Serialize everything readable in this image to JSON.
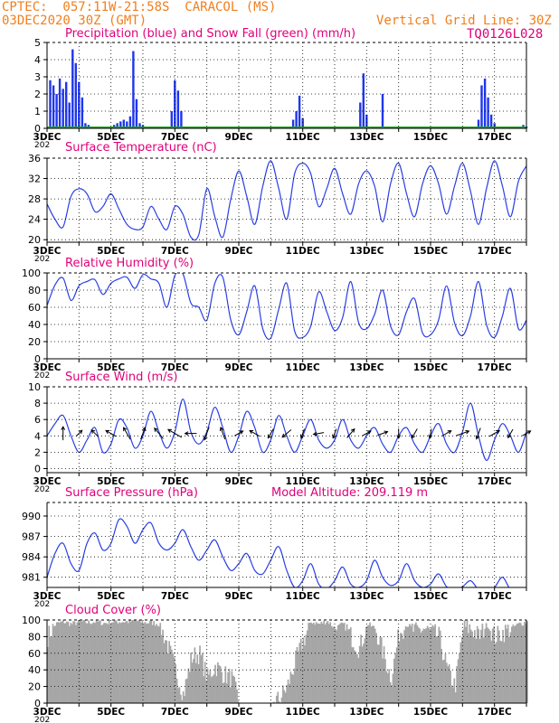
{
  "header": {
    "line1": "CPTEC:  057:11W-21:58S  CARACOL (MS)",
    "line2": "03DEC2020 30Z (GMT)",
    "grid_note": "Vertical Grid Line: 30Z",
    "code": "TQ0126L028",
    "color": "#f07f1e"
  },
  "colors": {
    "title": "#e0007a",
    "line": "#2a3fe6",
    "precip": "#1f36ee",
    "snow": "#22aa22",
    "cloud": "#a6a6a6",
    "arrow": "#000000"
  },
  "x_tick_labels": [
    "3DEC",
    "5DEC",
    "7DEC",
    "9DEC",
    "11DEC",
    "13DEC",
    "15DEC",
    "17DEC"
  ],
  "x_tick_days": [
    3,
    5,
    7,
    9,
    11,
    13,
    15,
    17
  ],
  "x_stub_label": "202",
  "chart_data": [
    {
      "id": "precip",
      "type": "bar",
      "title": "Precipitation (blue) and Snow Fall (green) (mm/h)",
      "ylim": [
        0,
        5
      ],
      "yticks": [
        0,
        1,
        2,
        3,
        4,
        5
      ],
      "series": [
        {
          "name": "Precipitation",
          "x": [
            3.1,
            3.2,
            3.3,
            3.4,
            3.5,
            3.6,
            3.7,
            3.8,
            3.9,
            4.0,
            4.1,
            4.2,
            4.3,
            5.0,
            5.1,
            5.2,
            5.3,
            5.4,
            5.5,
            5.6,
            5.7,
            5.8,
            5.9,
            6.0,
            6.1,
            6.9,
            7.0,
            7.1,
            7.2,
            10.7,
            10.8,
            10.9,
            11.0,
            12.8,
            12.9,
            13.0,
            13.5,
            16.5,
            16.6,
            16.7,
            16.8,
            16.9,
            17.0,
            17.9,
            18.0
          ],
          "values": [
            2.8,
            2.5,
            2.0,
            2.9,
            2.3,
            2.7,
            1.5,
            4.6,
            3.8,
            2.7,
            1.8,
            0.3,
            0.2,
            0.1,
            0.2,
            0.3,
            0.4,
            0.5,
            0.4,
            0.7,
            4.5,
            1.7,
            0.3,
            0.2,
            0.1,
            1.0,
            2.8,
            2.2,
            1.0,
            0.5,
            1.0,
            1.9,
            0.6,
            1.5,
            3.2,
            0.8,
            2.0,
            0.5,
            2.5,
            2.9,
            1.8,
            0.8,
            0.3,
            0.2,
            0.1
          ]
        },
        {
          "name": "Snow Fall",
          "x": [],
          "values": []
        }
      ]
    },
    {
      "id": "temp",
      "type": "line",
      "title": "Surface Temperature (nC)",
      "ylim": [
        19.5,
        36
      ],
      "yticks": [
        20,
        24,
        28,
        32,
        36
      ],
      "x": [
        3.0,
        3.25,
        3.5,
        3.75,
        4.0,
        4.25,
        4.5,
        4.75,
        5.0,
        5.25,
        5.5,
        5.75,
        6.0,
        6.25,
        6.5,
        6.75,
        7.0,
        7.25,
        7.5,
        7.75,
        8.0,
        8.25,
        8.5,
        8.75,
        9.0,
        9.25,
        9.5,
        9.75,
        10.0,
        10.25,
        10.5,
        10.75,
        11.0,
        11.25,
        11.5,
        11.75,
        12.0,
        12.25,
        12.5,
        12.75,
        13.0,
        13.25,
        13.5,
        13.75,
        14.0,
        14.25,
        14.5,
        14.75,
        15.0,
        15.25,
        15.5,
        15.75,
        16.0,
        16.25,
        16.5,
        16.75,
        17.0,
        17.25,
        17.5,
        17.75,
        18.0
      ],
      "values": [
        27.0,
        24.0,
        22.5,
        28.5,
        30.0,
        29.0,
        25.5,
        26.5,
        29.0,
        26.0,
        23.0,
        22.0,
        22.5,
        26.5,
        24.0,
        22.0,
        26.5,
        25.0,
        20.5,
        21.0,
        30.0,
        24.5,
        20.5,
        28.0,
        33.5,
        28.5,
        23.0,
        30.5,
        35.5,
        30.0,
        24.0,
        33.0,
        35.0,
        33.0,
        26.5,
        30.0,
        34.0,
        29.0,
        25.0,
        31.0,
        33.5,
        30.5,
        23.5,
        31.0,
        35.0,
        29.0,
        24.5,
        31.0,
        34.5,
        31.0,
        25.0,
        30.5,
        35.0,
        29.5,
        23.0,
        30.0,
        35.5,
        30.5,
        24.5,
        31.5,
        34.5
      ]
    },
    {
      "id": "rh",
      "type": "line",
      "title": "Relative Humidity (%)",
      "ylim": [
        0,
        100
      ],
      "yticks": [
        0,
        20,
        40,
        60,
        80,
        100
      ],
      "x": [
        3.0,
        3.25,
        3.5,
        3.75,
        4.0,
        4.25,
        4.5,
        4.75,
        5.0,
        5.25,
        5.5,
        5.75,
        6.0,
        6.25,
        6.5,
        6.75,
        7.0,
        7.25,
        7.5,
        7.75,
        8.0,
        8.25,
        8.5,
        8.75,
        9.0,
        9.25,
        9.5,
        9.75,
        10.0,
        10.25,
        10.5,
        10.75,
        11.0,
        11.25,
        11.5,
        11.75,
        12.0,
        12.25,
        12.5,
        12.75,
        13.0,
        13.25,
        13.5,
        13.75,
        14.0,
        14.25,
        14.5,
        14.75,
        15.0,
        15.25,
        15.5,
        15.75,
        16.0,
        16.25,
        16.5,
        16.75,
        17.0,
        17.25,
        17.5,
        17.75,
        18.0
      ],
      "values": [
        62.0,
        86.0,
        94.0,
        68.0,
        85.0,
        90.0,
        92.0,
        75.0,
        88.0,
        93.0,
        95.0,
        82.0,
        98.0,
        93.0,
        88.0,
        60.0,
        97.0,
        99.0,
        65.0,
        60.0,
        45.0,
        88.0,
        95.0,
        45.0,
        28.0,
        55.0,
        85.0,
        35.0,
        24.0,
        58.0,
        88.0,
        32.0,
        25.0,
        38.0,
        78.0,
        55.0,
        33.0,
        48.0,
        90.0,
        42.0,
        35.0,
        52.0,
        80.0,
        38.0,
        28.0,
        55.0,
        70.0,
        30.0,
        28.0,
        45.0,
        85.0,
        42.0,
        27.0,
        50.0,
        90.0,
        40.0,
        25.0,
        50.0,
        82.0,
        35.0,
        45.0
      ]
    },
    {
      "id": "wind",
      "type": "line",
      "title": "Surface Wind (m/s)",
      "ylim": [
        -0.5,
        10
      ],
      "yticks": [
        0,
        2,
        4,
        6,
        8,
        10
      ],
      "x": [
        3.0,
        3.25,
        3.5,
        3.75,
        4.0,
        4.25,
        4.5,
        4.75,
        5.0,
        5.25,
        5.5,
        5.75,
        6.0,
        6.25,
        6.5,
        6.75,
        7.0,
        7.25,
        7.5,
        7.75,
        8.0,
        8.25,
        8.5,
        8.75,
        9.0,
        9.25,
        9.5,
        9.75,
        10.0,
        10.25,
        10.5,
        10.75,
        11.0,
        11.25,
        11.5,
        11.75,
        12.0,
        12.25,
        12.5,
        12.75,
        13.0,
        13.25,
        13.5,
        13.75,
        14.0,
        14.25,
        14.5,
        14.75,
        15.0,
        15.25,
        15.5,
        15.75,
        16.0,
        16.25,
        16.5,
        16.75,
        17.0,
        17.25,
        17.5,
        17.75,
        18.0
      ],
      "values": [
        4.0,
        5.5,
        6.5,
        4.0,
        2.0,
        3.5,
        5.0,
        2.0,
        3.0,
        6.0,
        5.0,
        2.5,
        4.0,
        7.0,
        4.5,
        2.5,
        4.5,
        8.5,
        4.5,
        3.0,
        4.5,
        7.5,
        5.0,
        2.0,
        4.0,
        7.0,
        5.0,
        2.0,
        3.5,
        6.5,
        4.0,
        2.0,
        4.0,
        6.0,
        3.5,
        2.5,
        3.5,
        6.0,
        3.5,
        2.5,
        4.0,
        5.0,
        3.0,
        2.0,
        4.0,
        5.0,
        3.0,
        2.0,
        4.0,
        5.5,
        3.0,
        2.0,
        4.5,
        8.0,
        4.0,
        1.0,
        3.5,
        5.5,
        4.0,
        2.0,
        4.5
      ],
      "arrows": {
        "x": [
          3.5,
          4.0,
          4.5,
          5.0,
          5.5,
          6.0,
          6.5,
          7.0,
          7.5,
          8.0,
          8.5,
          9.0,
          9.5,
          10.0,
          10.5,
          11.0,
          11.5,
          12.0,
          12.5,
          13.0,
          13.5,
          14.0,
          14.5,
          15.0,
          15.5,
          16.0,
          16.5,
          17.0,
          17.5,
          18.0
        ],
        "speed": [
          5.0,
          2.5,
          3.0,
          4.0,
          5.0,
          4.5,
          5.0,
          6.0,
          4.0,
          5.0,
          4.5,
          3.0,
          4.0,
          3.5,
          4.0,
          3.0,
          3.5,
          3.0,
          4.0,
          3.0,
          3.5,
          3.0,
          3.5,
          3.0,
          3.5,
          5.0,
          4.0,
          4.0,
          3.0,
          3.0
        ],
        "dir_deg": [
          0,
          45,
          315,
          300,
          330,
          20,
          320,
          300,
          270,
          200,
          340,
          60,
          300,
          210,
          230,
          200,
          260,
          200,
          40,
          60,
          70,
          180,
          210,
          190,
          60,
          70,
          200,
          60,
          210,
          60
        ]
      }
    },
    {
      "id": "pres",
      "type": "line",
      "title": "Surface Pressure (hPa)",
      "subtitle": "Model Altitude: 209.119  m",
      "ylim": [
        979.5,
        992
      ],
      "yticks": [
        981,
        984,
        987,
        990
      ],
      "x": [
        3.0,
        3.25,
        3.5,
        3.75,
        4.0,
        4.25,
        4.5,
        4.75,
        5.0,
        5.25,
        5.5,
        5.75,
        6.0,
        6.25,
        6.5,
        6.75,
        7.0,
        7.25,
        7.5,
        7.75,
        8.0,
        8.25,
        8.5,
        8.75,
        9.0,
        9.25,
        9.5,
        9.75,
        10.0,
        10.25,
        10.5,
        10.75,
        11.0,
        11.25,
        11.5,
        11.75,
        12.0,
        12.25,
        12.5,
        12.75,
        13.0,
        13.25,
        13.5,
        13.75,
        14.0,
        14.25,
        14.5,
        14.75,
        15.0,
        15.25,
        15.5,
        15.75,
        16.0,
        16.25,
        16.5,
        16.75,
        17.0,
        17.25,
        17.5,
        17.75,
        18.0
      ],
      "values": [
        981.0,
        984.5,
        986.0,
        983.0,
        982.0,
        986.0,
        987.5,
        985.0,
        986.0,
        989.5,
        988.5,
        986.0,
        988.0,
        989.0,
        986.0,
        985.0,
        986.0,
        988.0,
        985.5,
        983.5,
        985.0,
        986.5,
        984.0,
        982.0,
        983.0,
        984.5,
        982.0,
        981.5,
        983.5,
        985.5,
        982.0,
        979.5,
        980.5,
        983.0,
        980.0,
        979.3,
        980.5,
        982.5,
        980.0,
        979.5,
        980.5,
        983.5,
        981.0,
        979.8,
        980.5,
        983.0,
        980.5,
        979.5,
        980.0,
        981.5,
        979.6,
        979.2,
        979.6,
        980.5,
        979.2,
        979.0,
        979.5,
        981.0,
        979.2,
        979.0,
        979.5
      ]
    },
    {
      "id": "cloud",
      "type": "bar",
      "title": "Cloud Cover (%)",
      "ylim": [
        0,
        100
      ],
      "yticks": [
        0,
        20,
        40,
        60,
        80,
        100
      ],
      "x": [
        3.0,
        3.25,
        3.5,
        3.75,
        4.0,
        4.25,
        4.5,
        4.75,
        5.0,
        5.25,
        5.5,
        5.75,
        6.0,
        6.25,
        6.5,
        6.75,
        7.0,
        7.25,
        7.5,
        7.75,
        8.0,
        8.25,
        8.5,
        8.75,
        9.0,
        9.25,
        9.5,
        9.75,
        10.0,
        10.25,
        10.5,
        10.75,
        11.0,
        11.25,
        11.5,
        11.75,
        12.0,
        12.25,
        12.5,
        12.75,
        13.0,
        13.25,
        13.5,
        13.75,
        14.0,
        14.25,
        14.5,
        14.75,
        15.0,
        15.25,
        15.5,
        15.75,
        16.0,
        16.25,
        16.5,
        16.75,
        17.0,
        17.25,
        17.5,
        17.75,
        18.0
      ],
      "values": [
        80,
        95,
        98,
        95,
        98,
        97,
        98,
        96,
        98,
        98,
        98,
        99,
        97,
        97,
        95,
        70,
        40,
        10,
        55,
        60,
        30,
        45,
        35,
        30,
        0,
        0,
        0,
        0,
        0,
        5,
        20,
        50,
        75,
        98,
        95,
        99,
        90,
        95,
        80,
        65,
        95,
        90,
        60,
        30,
        85,
        95,
        85,
        90,
        85,
        80,
        40,
        20,
        90,
        90,
        80,
        95,
        80,
        85,
        90,
        95,
        98
      ],
      "bar_width_days": 0.04,
      "noise_amplitude": 18
    }
  ]
}
